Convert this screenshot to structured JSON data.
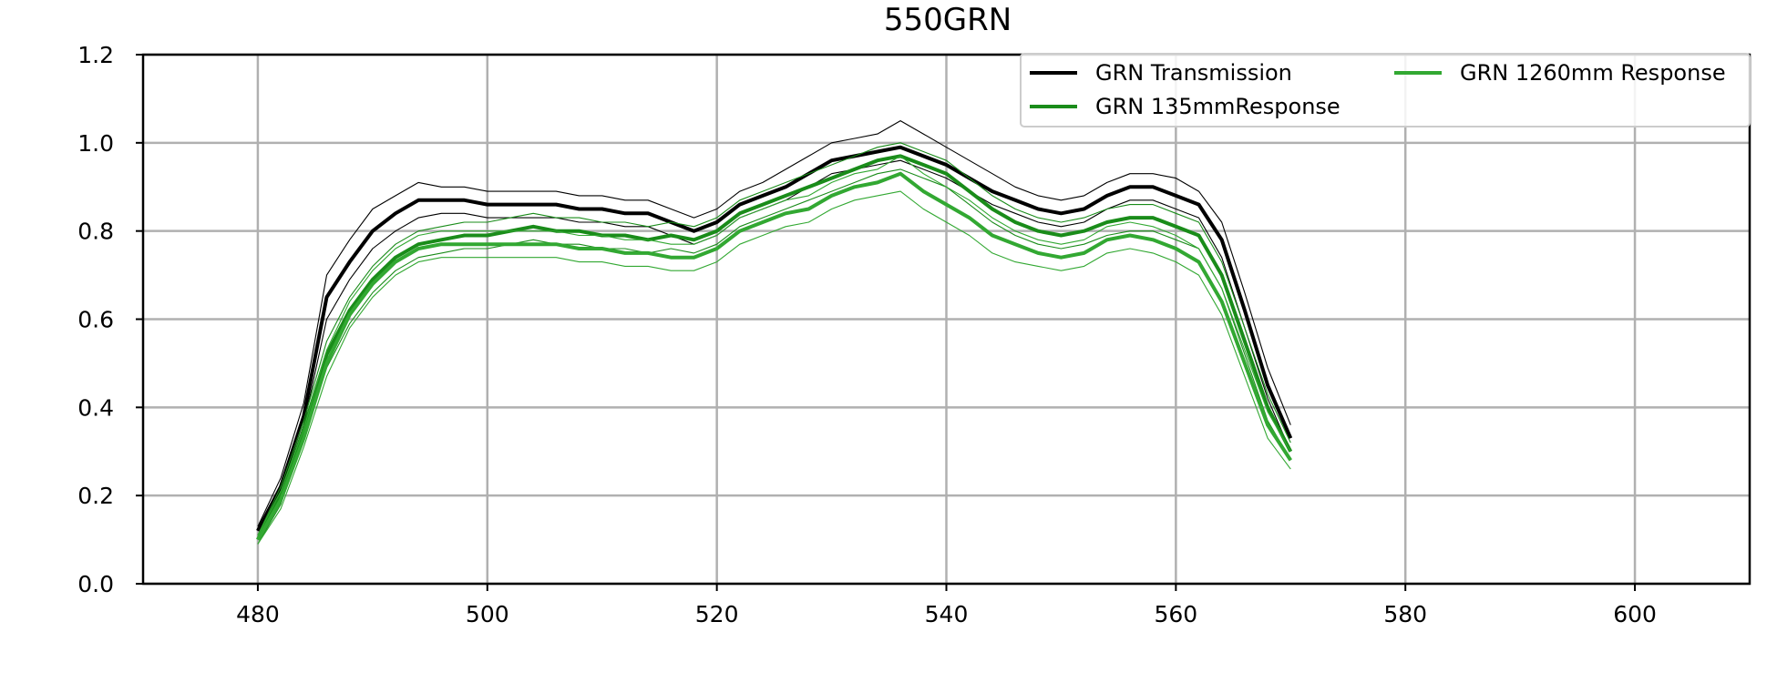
{
  "chart_data": {
    "type": "line",
    "title": "550GRN",
    "xlabel": "",
    "ylabel": "",
    "xlim": [
      470,
      610
    ],
    "ylim": [
      0.0,
      1.2
    ],
    "xticks": [
      480,
      500,
      520,
      540,
      560,
      580,
      600
    ],
    "yticks": [
      0.0,
      0.2,
      0.4,
      0.6,
      0.8,
      1.0,
      1.2
    ],
    "xtick_labels": [
      "480",
      "500",
      "520",
      "540",
      "560",
      "580",
      "600"
    ],
    "ytick_labels": [
      "0.0",
      "0.2",
      "0.4",
      "0.6",
      "0.8",
      "1.0",
      "1.2"
    ],
    "grid": true,
    "legend_position": "top-right",
    "legend_columns": 2,
    "x": [
      480,
      482,
      484,
      486,
      488,
      490,
      492,
      494,
      496,
      498,
      500,
      502,
      504,
      506,
      508,
      510,
      512,
      514,
      516,
      518,
      520,
      522,
      524,
      526,
      528,
      530,
      532,
      534,
      536,
      538,
      540,
      542,
      544,
      546,
      548,
      550,
      552,
      554,
      556,
      558,
      560,
      562,
      564,
      566,
      568,
      570
    ],
    "series": [
      {
        "name": "GRN Transmission",
        "color": "#000000",
        "values": [
          0.12,
          0.22,
          0.38,
          0.65,
          0.73,
          0.8,
          0.84,
          0.87,
          0.87,
          0.87,
          0.86,
          0.86,
          0.86,
          0.86,
          0.85,
          0.85,
          0.84,
          0.84,
          0.82,
          0.8,
          0.82,
          0.86,
          0.88,
          0.9,
          0.93,
          0.96,
          0.97,
          0.98,
          0.99,
          0.97,
          0.95,
          0.92,
          0.89,
          0.87,
          0.85,
          0.84,
          0.85,
          0.88,
          0.9,
          0.9,
          0.88,
          0.86,
          0.78,
          0.62,
          0.45,
          0.33
        ],
        "upper": [
          0.13,
          0.24,
          0.41,
          0.7,
          0.78,
          0.85,
          0.88,
          0.91,
          0.9,
          0.9,
          0.89,
          0.89,
          0.89,
          0.89,
          0.88,
          0.88,
          0.87,
          0.87,
          0.85,
          0.83,
          0.85,
          0.89,
          0.91,
          0.94,
          0.97,
          1.0,
          1.01,
          1.02,
          1.05,
          1.02,
          0.99,
          0.96,
          0.93,
          0.9,
          0.88,
          0.87,
          0.88,
          0.91,
          0.93,
          0.93,
          0.92,
          0.89,
          0.82,
          0.66,
          0.49,
          0.36
        ],
        "lower": [
          0.11,
          0.2,
          0.36,
          0.6,
          0.69,
          0.76,
          0.8,
          0.83,
          0.84,
          0.84,
          0.83,
          0.83,
          0.83,
          0.83,
          0.82,
          0.82,
          0.81,
          0.81,
          0.79,
          0.77,
          0.79,
          0.83,
          0.85,
          0.87,
          0.9,
          0.93,
          0.94,
          0.95,
          0.96,
          0.94,
          0.92,
          0.89,
          0.86,
          0.84,
          0.82,
          0.81,
          0.82,
          0.85,
          0.87,
          0.87,
          0.85,
          0.83,
          0.74,
          0.58,
          0.42,
          0.3
        ]
      },
      {
        "name": "GRN 135mmResponse",
        "color": "#1a8c1a",
        "values": [
          0.1,
          0.2,
          0.35,
          0.52,
          0.62,
          0.69,
          0.74,
          0.77,
          0.78,
          0.79,
          0.79,
          0.8,
          0.81,
          0.8,
          0.8,
          0.79,
          0.79,
          0.78,
          0.79,
          0.78,
          0.8,
          0.84,
          0.86,
          0.88,
          0.9,
          0.92,
          0.94,
          0.96,
          0.97,
          0.95,
          0.93,
          0.89,
          0.85,
          0.82,
          0.8,
          0.79,
          0.8,
          0.82,
          0.83,
          0.83,
          0.81,
          0.79,
          0.7,
          0.55,
          0.4,
          0.3
        ],
        "upper": [
          0.11,
          0.22,
          0.37,
          0.55,
          0.65,
          0.72,
          0.77,
          0.8,
          0.81,
          0.82,
          0.82,
          0.83,
          0.84,
          0.83,
          0.83,
          0.82,
          0.82,
          0.81,
          0.82,
          0.81,
          0.83,
          0.87,
          0.89,
          0.91,
          0.93,
          0.95,
          0.97,
          0.99,
          1.0,
          0.98,
          0.96,
          0.92,
          0.88,
          0.85,
          0.83,
          0.82,
          0.83,
          0.85,
          0.86,
          0.86,
          0.84,
          0.82,
          0.73,
          0.58,
          0.43,
          0.32
        ],
        "lower": [
          0.09,
          0.18,
          0.33,
          0.49,
          0.59,
          0.66,
          0.71,
          0.74,
          0.75,
          0.76,
          0.76,
          0.77,
          0.78,
          0.77,
          0.77,
          0.76,
          0.76,
          0.75,
          0.76,
          0.75,
          0.77,
          0.81,
          0.83,
          0.85,
          0.87,
          0.89,
          0.91,
          0.93,
          0.94,
          0.92,
          0.9,
          0.86,
          0.82,
          0.79,
          0.77,
          0.76,
          0.77,
          0.79,
          0.8,
          0.8,
          0.78,
          0.76,
          0.67,
          0.52,
          0.37,
          0.28
        ]
      },
      {
        "name": "GRN 1260mm Response",
        "color": "#32a832",
        "values": [
          0.1,
          0.19,
          0.33,
          0.5,
          0.61,
          0.68,
          0.73,
          0.76,
          0.77,
          0.77,
          0.77,
          0.77,
          0.77,
          0.77,
          0.76,
          0.76,
          0.75,
          0.75,
          0.74,
          0.74,
          0.76,
          0.8,
          0.82,
          0.84,
          0.85,
          0.88,
          0.9,
          0.91,
          0.93,
          0.89,
          0.86,
          0.83,
          0.79,
          0.77,
          0.75,
          0.74,
          0.75,
          0.78,
          0.79,
          0.78,
          0.76,
          0.73,
          0.64,
          0.5,
          0.36,
          0.28
        ],
        "upper": [
          0.11,
          0.21,
          0.35,
          0.53,
          0.64,
          0.71,
          0.76,
          0.79,
          0.8,
          0.8,
          0.8,
          0.8,
          0.8,
          0.8,
          0.79,
          0.79,
          0.78,
          0.78,
          0.77,
          0.77,
          0.79,
          0.83,
          0.85,
          0.87,
          0.88,
          0.91,
          0.93,
          0.94,
          0.97,
          0.93,
          0.9,
          0.87,
          0.83,
          0.8,
          0.78,
          0.77,
          0.78,
          0.81,
          0.82,
          0.81,
          0.79,
          0.76,
          0.67,
          0.53,
          0.39,
          0.3
        ],
        "lower": [
          0.09,
          0.17,
          0.31,
          0.47,
          0.58,
          0.65,
          0.7,
          0.73,
          0.74,
          0.74,
          0.74,
          0.74,
          0.74,
          0.74,
          0.73,
          0.73,
          0.72,
          0.72,
          0.71,
          0.71,
          0.73,
          0.77,
          0.79,
          0.81,
          0.82,
          0.85,
          0.87,
          0.88,
          0.89,
          0.85,
          0.82,
          0.79,
          0.75,
          0.73,
          0.72,
          0.71,
          0.72,
          0.75,
          0.76,
          0.75,
          0.73,
          0.7,
          0.61,
          0.47,
          0.33,
          0.26
        ]
      }
    ]
  }
}
